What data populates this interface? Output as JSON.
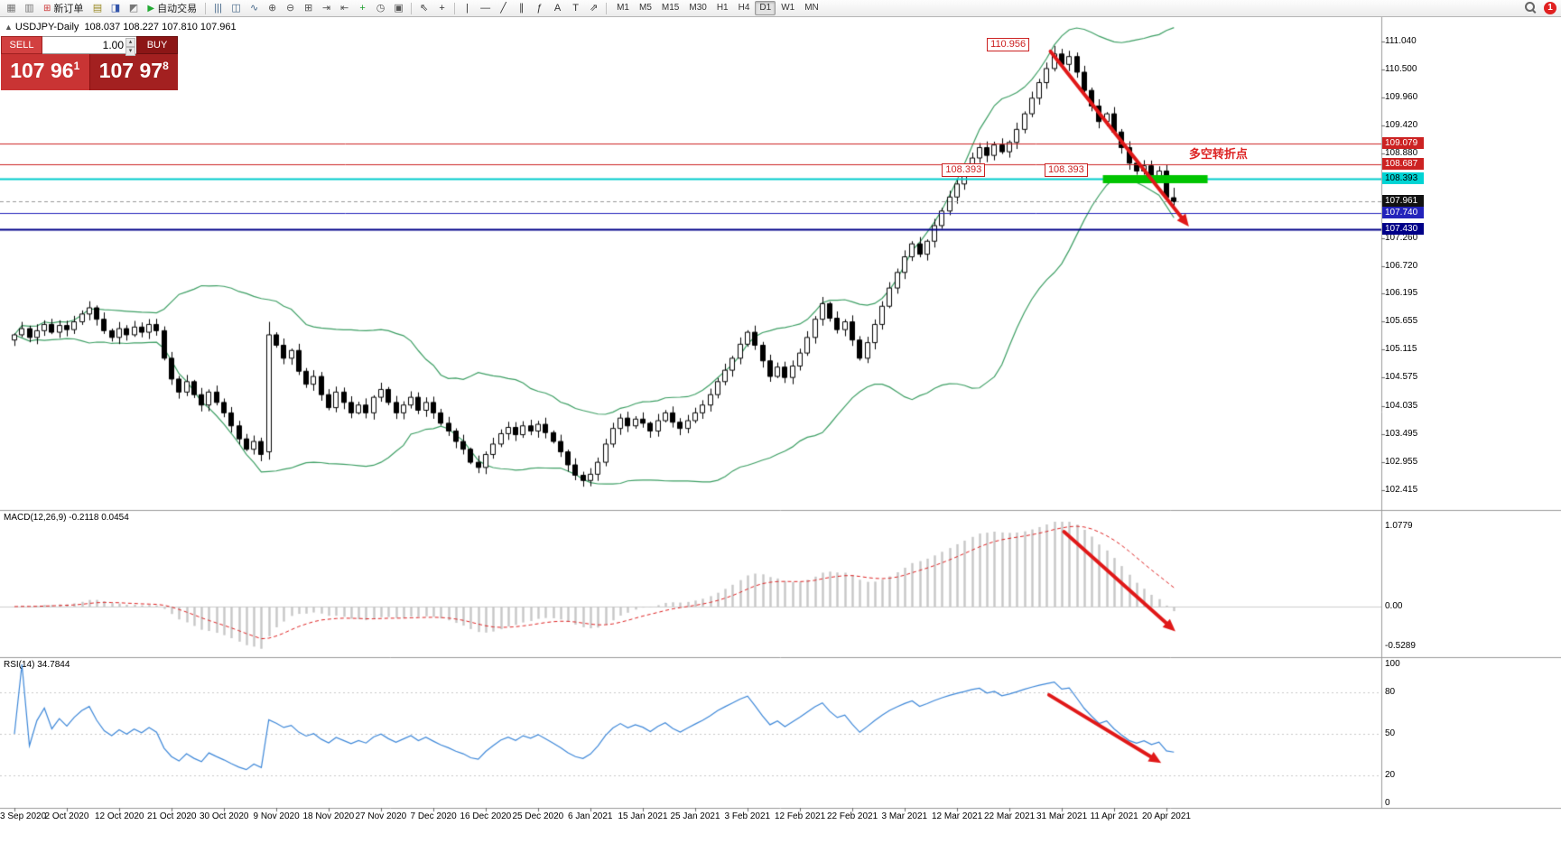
{
  "toolbar": {
    "items": [
      {
        "type": "icon",
        "name": "new-chart-icon",
        "glyph": "▦",
        "color": "#777777"
      },
      {
        "type": "icon",
        "name": "chart-profiles-icon",
        "glyph": "▥",
        "color": "#777777"
      },
      {
        "type": "button",
        "name": "new-order-button",
        "glyph": "⊞",
        "glyph_color": "#cc3333",
        "label": "新订单"
      },
      {
        "type": "icon",
        "name": "market-watch-icon",
        "glyph": "▤",
        "color": "#998822"
      },
      {
        "type": "icon",
        "name": "data-window-icon",
        "glyph": "◨",
        "color": "#3355aa"
      },
      {
        "type": "icon",
        "name": "strategy-tester-icon",
        "glyph": "◩",
        "color": "#777777"
      },
      {
        "type": "button",
        "name": "autotrading-button",
        "glyph": "▶",
        "glyph_color": "#22aa33",
        "label": "自动交易"
      },
      {
        "type": "sep"
      },
      {
        "type": "icon",
        "name": "bar-chart-mode-icon",
        "glyph": "|||",
        "color": "#446688"
      },
      {
        "type": "icon",
        "name": "candlestick-mode-icon",
        "glyph": "◫",
        "color": "#446688"
      },
      {
        "type": "icon",
        "name": "line-chart-mode-icon",
        "glyph": "∿",
        "color": "#446688"
      },
      {
        "type": "icon",
        "name": "zoom-in-icon",
        "glyph": "⊕",
        "color": "#555555"
      },
      {
        "type": "icon",
        "name": "zoom-out-icon",
        "glyph": "⊖",
        "color": "#555555"
      },
      {
        "type": "icon",
        "name": "tile-windows-icon",
        "glyph": "⊞",
        "color": "#555555"
      },
      {
        "type": "icon",
        "name": "auto-scroll-icon",
        "glyph": "⇥",
        "color": "#555555"
      },
      {
        "type": "icon",
        "name": "chart-shift-icon",
        "glyph": "⇤",
        "color": "#555555"
      },
      {
        "type": "icon",
        "name": "indicators-icon",
        "glyph": "+",
        "color": "#1d9e2d"
      },
      {
        "type": "icon",
        "name": "periods-icon",
        "glyph": "◷",
        "color": "#555555"
      },
      {
        "type": "icon",
        "name": "templates-icon",
        "glyph": "▣",
        "color": "#555555"
      },
      {
        "type": "sep"
      },
      {
        "type": "icon",
        "name": "cursor-icon",
        "glyph": "⇖",
        "color": "#333333"
      },
      {
        "type": "icon",
        "name": "crosshair-icon",
        "glyph": "+",
        "color": "#333333"
      },
      {
        "type": "sep"
      },
      {
        "type": "icon",
        "name": "vertical-line-icon",
        "glyph": "|",
        "color": "#333333"
      },
      {
        "type": "icon",
        "name": "horizontal-line-icon",
        "glyph": "—",
        "color": "#333333"
      },
      {
        "type": "icon",
        "name": "trendline-icon",
        "glyph": "╱",
        "color": "#333333"
      },
      {
        "type": "icon",
        "name": "channel-icon",
        "glyph": "∥",
        "color": "#333333"
      },
      {
        "type": "icon",
        "name": "fibonacci-icon",
        "glyph": "ƒ",
        "color": "#333333"
      },
      {
        "type": "icon",
        "name": "text-icon",
        "glyph": "A",
        "color": "#333333"
      },
      {
        "type": "icon",
        "name": "text-label-icon",
        "glyph": "T",
        "color": "#333333"
      },
      {
        "type": "icon",
        "name": "arrows-tool-icon",
        "glyph": "⇗",
        "color": "#333333"
      },
      {
        "type": "sep"
      },
      {
        "type": "timeframes",
        "name": "timeframe-toolbar",
        "options": [
          "M1",
          "M5",
          "M15",
          "M30",
          "H1",
          "H4",
          "D1",
          "W1",
          "MN"
        ],
        "active": "D1"
      },
      {
        "type": "spacer"
      },
      {
        "type": "search",
        "name": "search-icon"
      },
      {
        "type": "badge",
        "name": "notification-badge",
        "label": "1"
      }
    ]
  },
  "chart_header": {
    "toggle_glyph": "▲",
    "title": "USDJPY-Daily",
    "ohlc": "108.037 108.227 107.810 107.961"
  },
  "trade_panel": {
    "sell_label": "SELL",
    "buy_label": "BUY",
    "volume": "1.00",
    "spin_up_glyph": "▴",
    "spin_down_glyph": "▾",
    "sell_price_main": "107 96",
    "sell_price_sup": "1",
    "buy_price_main": "107 97",
    "buy_price_sup": "8"
  },
  "time_axis": {
    "labels": [
      "3 Sep 2020",
      "2 Oct 2020",
      "12 Oct 2020",
      "21 Oct 2020",
      "30 Oct 2020",
      "9 Nov 2020",
      "18 Nov 2020",
      "27 Nov 2020",
      "7 Dec 2020",
      "16 Dec 2020",
      "25 Dec 2020",
      "6 Jan 2021",
      "15 Jan 2021",
      "25 Jan 2021",
      "3 Feb 2021",
      "12 Feb 2021",
      "22 Feb 2021",
      "3 Mar 2021",
      "12 Mar 2021",
      "22 Mar 2021",
      "31 Mar 2021",
      "11 Apr 2021",
      "20 Apr 2021"
    ]
  },
  "chart_data": {
    "type": "candlestick",
    "symbol": "USDJPY",
    "period": "Daily",
    "last_ohlc": {
      "open": 108.037,
      "high": 108.227,
      "low": 107.81,
      "close": 107.961
    },
    "first_open": 105.3,
    "bars_per_label": 7,
    "closes": [
      105.4,
      105.52,
      105.35,
      105.48,
      105.6,
      105.45,
      105.58,
      105.5,
      105.65,
      105.8,
      105.92,
      105.7,
      105.48,
      105.35,
      105.52,
      105.4,
      105.55,
      105.45,
      105.6,
      105.48,
      104.95,
      104.55,
      104.3,
      104.5,
      104.25,
      104.05,
      104.3,
      104.1,
      103.9,
      103.65,
      103.4,
      103.2,
      103.35,
      103.1,
      105.4,
      105.2,
      104.95,
      105.1,
      104.7,
      104.45,
      104.6,
      104.25,
      104.0,
      104.3,
      104.1,
      103.9,
      104.05,
      103.9,
      104.2,
      104.35,
      104.1,
      103.9,
      104.05,
      104.2,
      103.95,
      104.1,
      103.9,
      103.7,
      103.55,
      103.35,
      103.2,
      102.95,
      102.85,
      103.1,
      103.3,
      103.5,
      103.62,
      103.48,
      103.65,
      103.55,
      103.68,
      103.52,
      103.35,
      103.15,
      102.9,
      102.7,
      102.6,
      102.72,
      102.95,
      103.3,
      103.6,
      103.8,
      103.65,
      103.78,
      103.7,
      103.55,
      103.75,
      103.9,
      103.72,
      103.6,
      103.75,
      103.9,
      104.05,
      104.25,
      104.5,
      104.72,
      104.95,
      105.22,
      105.45,
      105.2,
      104.9,
      104.6,
      104.78,
      104.58,
      104.8,
      105.05,
      105.35,
      105.7,
      106.0,
      105.72,
      105.5,
      105.65,
      105.3,
      104.95,
      105.25,
      105.6,
      105.95,
      106.3,
      106.6,
      106.9,
      107.15,
      106.95,
      107.2,
      107.5,
      107.78,
      108.05,
      108.3,
      108.52,
      108.8,
      109.0,
      108.85,
      109.05,
      108.92,
      109.1,
      109.35,
      109.65,
      109.95,
      110.25,
      110.52,
      110.8,
      110.6,
      110.75,
      110.45,
      110.1,
      109.8,
      109.5,
      109.65,
      109.3,
      109.0,
      108.7,
      108.55,
      108.65,
      108.45,
      108.55,
      108.04,
      107.961
    ],
    "ohlc_overrides": [
      {
        "i": 34,
        "o": 103.15,
        "h": 105.65,
        "l": 103.0,
        "c": 105.4
      },
      {
        "i": 76,
        "l": 102.48
      },
      {
        "i": 139,
        "h": 110.956
      },
      {
        "i": 155,
        "o": 108.037,
        "h": 108.227,
        "l": 107.81,
        "c": 107.961
      }
    ],
    "price_axis": {
      "grid_labels": [
        111.04,
        110.5,
        109.96,
        109.42,
        108.88,
        107.26,
        106.72,
        106.195,
        105.655,
        105.115,
        104.575,
        104.035,
        103.495,
        102.955,
        102.415
      ]
    },
    "hlines": [
      {
        "price": 109.079,
        "color": "#cc2222",
        "width": 1,
        "tag_bg": "#cc2222",
        "tag_fg": "#ffffff"
      },
      {
        "price": 108.687,
        "color": "#cc2222",
        "width": 1,
        "tag_bg": "#cc2222",
        "tag_fg": "#ffffff"
      },
      {
        "price": 108.393,
        "color": "#00cccc",
        "width": 2,
        "tag_bg": "#00d4d4",
        "tag_fg": "#000000"
      },
      {
        "price": 107.961,
        "color": "#999999",
        "width": 1,
        "style": "dash",
        "tag_bg": "#111111",
        "tag_fg": "#ffffff"
      },
      {
        "price": 107.74,
        "color": "#2222bb",
        "width": 1,
        "tag_bg": "#2222bb",
        "tag_fg": "#ffffff"
      },
      {
        "price": 107.43,
        "color": "#000088",
        "width": 2,
        "tag_bg": "#000088",
        "tag_fg": "#ffffff"
      }
    ],
    "bollinger": {
      "period": 20,
      "deviation": 2,
      "color": "#3c9e63"
    },
    "green_zone": {
      "price": 108.393,
      "bar_from": 145.5,
      "bar_to": 159.5,
      "thickness_px": 9,
      "color": "#00c400"
    },
    "macd": {
      "label": "MACD(12,26,9) -0.2118 0.0454",
      "fast": 12,
      "slow": 26,
      "signal": 9,
      "histogram_color": "#c6c6c6",
      "signal_color": "#dd2222",
      "scale_labels": [
        "1.0779",
        "0.00",
        "-0.5289"
      ]
    },
    "rsi": {
      "label": "RSI(14) 34.7844",
      "period": 14,
      "current": 34.7844,
      "color": "#3d87d8",
      "levels": [
        80,
        50,
        20
      ],
      "scale_labels": [
        "100",
        "80",
        "50",
        "20",
        "0"
      ]
    },
    "annotations": {
      "boxes": [
        {
          "name": "peak-price-label",
          "text": "110.956",
          "bar": 130,
          "price": 110.97
        },
        {
          "name": "support-price-label-1",
          "text": "108.393",
          "bar": 124,
          "price": 108.55
        },
        {
          "name": "support-price-label-2",
          "text": "108.393",
          "bar": 137.7,
          "price": 108.55
        }
      ],
      "texts": [
        {
          "name": "turning-point-note",
          "text": "多空转折点",
          "bar": 157,
          "price": 108.93,
          "color": "#dd2222"
        }
      ],
      "arrows": [
        {
          "panel": "price",
          "from": {
            "bar": 138.5,
            "value": 110.85
          },
          "to": {
            "bar": 157.0,
            "value": 107.48
          },
          "color": "#e01818",
          "width": 4
        },
        {
          "panel": "macd",
          "from": {
            "bar": 140.3,
            "value": 1.0
          },
          "to": {
            "bar": 155.2,
            "value": -0.33
          },
          "color": "#e01818",
          "width": 4
        },
        {
          "panel": "rsi",
          "from": {
            "bar": 138.3,
            "value": 78
          },
          "to": {
            "bar": 153.3,
            "value": 29
          },
          "color": "#e01818",
          "width": 4
        }
      ]
    }
  }
}
